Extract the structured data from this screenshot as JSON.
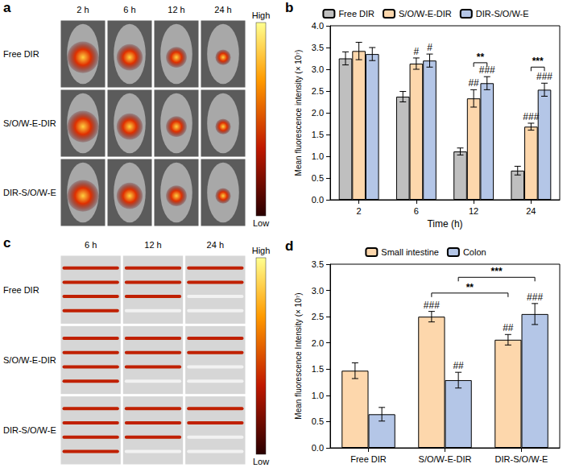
{
  "image_panels": [
    {
      "panel_label": "a",
      "columns": [
        "2 h",
        "6 h",
        "12 h",
        "24 h"
      ],
      "rows": [
        "Free DIR",
        "S/O/W-E-DIR",
        "DIR-S/O/W-E"
      ],
      "colorbar": {
        "high": "High",
        "low": "Low"
      }
    },
    {
      "panel_label": "c",
      "columns": [
        "6 h",
        "12 h",
        "24 h"
      ],
      "rows": [
        "Free DIR",
        "S/O/W-E-DIR",
        "DIR-S/O/W-E"
      ],
      "colorbar": {
        "high": "High",
        "low": "Low"
      }
    }
  ],
  "chart_data": [
    {
      "panel_label": "b",
      "type": "bar",
      "x_label": "Time (h)",
      "y_label": "Mean fluorescence intensity (× 10⁷)",
      "categories": [
        "2",
        "6",
        "12",
        "24"
      ],
      "series": [
        {
          "name": "Free DIR",
          "color": "#bfbfbf",
          "values": [
            3.25,
            2.37,
            1.11,
            0.67
          ],
          "errors": [
            0.15,
            0.12,
            0.08,
            0.1
          ]
        },
        {
          "name": "S/O/W-E-DIR",
          "color": "#fdd7ac",
          "values": [
            3.42,
            3.13,
            2.33,
            1.68
          ],
          "errors": [
            0.2,
            0.13,
            0.2,
            0.08
          ]
        },
        {
          "name": "DIR-S/O/W-E",
          "color": "#b4c6e7",
          "values": [
            3.35,
            3.2,
            2.68,
            2.53
          ],
          "errors": [
            0.15,
            0.15,
            0.15,
            0.15
          ]
        }
      ],
      "ylim": [
        0,
        4
      ],
      "yticks": [
        {
          "value": 0,
          "label": "0.0"
        },
        0.5,
        {
          "value": 1,
          "label": "1.0"
        },
        1.5,
        {
          "value": 2,
          "label": "2.0"
        },
        2.5,
        {
          "value": 3,
          "label": "3.0"
        },
        3.5,
        {
          "value": 4,
          "label": "4.0"
        }
      ],
      "grid": false,
      "legend": "top",
      "markers": [
        {
          "category": "6",
          "series": "S/O/W-E-DIR",
          "text": "#"
        },
        {
          "category": "6",
          "series": "DIR-S/O/W-E",
          "text": "#"
        },
        {
          "category": "12",
          "series": "S/O/W-E-DIR",
          "text": "##"
        },
        {
          "category": "12",
          "series": "DIR-S/O/W-E",
          "text": "###"
        },
        {
          "category": "24",
          "series": "S/O/W-E-DIR",
          "text": "###"
        },
        {
          "category": "24",
          "series": "DIR-S/O/W-E",
          "text": "###"
        }
      ],
      "brackets": [
        {
          "from": {
            "category": "12",
            "series": "S/O/W-E-DIR"
          },
          "to": {
            "category": "12",
            "series": "DIR-S/O/W-E"
          },
          "y": 3.15,
          "text": "**"
        },
        {
          "from": {
            "category": "24",
            "series": "S/O/W-E-DIR"
          },
          "to": {
            "category": "24",
            "series": "DIR-S/O/W-E"
          },
          "y": 3.05,
          "text": "***"
        }
      ]
    },
    {
      "panel_label": "d",
      "type": "bar",
      "y_label": "Mean fluorescence Intensity (× 10⁷)",
      "categories": [
        "Free DIR",
        "S/O/W-E-DIR",
        "DIR-S/O/W-E"
      ],
      "series": [
        {
          "name": "Small intestine",
          "color": "#fdd7ac",
          "values": [
            1.47,
            2.5,
            2.06
          ],
          "errors": [
            0.15,
            0.1,
            0.1
          ]
        },
        {
          "name": "Colon",
          "color": "#b4c6e7",
          "values": [
            0.64,
            1.29,
            2.55
          ],
          "errors": [
            0.13,
            0.15,
            0.2
          ]
        }
      ],
      "ylim": [
        0,
        3.5
      ],
      "yticks": [
        {
          "value": 0,
          "label": "0.0"
        },
        0.5,
        {
          "value": 1,
          "label": "1.0"
        },
        1.5,
        {
          "value": 2,
          "label": "2.0"
        },
        2.5,
        {
          "value": 3,
          "label": "3.0"
        },
        3.5
      ],
      "grid": false,
      "legend": "top",
      "markers": [
        {
          "category": "S/O/W-E-DIR",
          "series": "Small intestine",
          "text": "###"
        },
        {
          "category": "S/O/W-E-DIR",
          "series": "Colon",
          "text": "##"
        },
        {
          "category": "DIR-S/O/W-E",
          "series": "Small intestine",
          "text": "##"
        },
        {
          "category": "DIR-S/O/W-E",
          "series": "Colon",
          "text": "###"
        }
      ],
      "brackets": [
        {
          "from": {
            "category": "S/O/W-E-DIR",
            "series": "Small intestine"
          },
          "to": {
            "category": "DIR-S/O/W-E",
            "series": "Small intestine"
          },
          "y": 2.95,
          "text": "**"
        },
        {
          "from": {
            "category": "S/O/W-E-DIR",
            "series": "Colon"
          },
          "to": {
            "category": "DIR-S/O/W-E",
            "series": "Colon"
          },
          "y": 3.25,
          "text": "***"
        }
      ]
    }
  ]
}
